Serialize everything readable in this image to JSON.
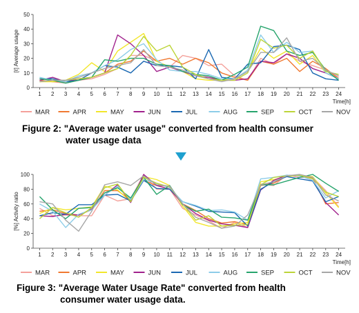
{
  "colors": {
    "MAR": "#f4a09a",
    "APR": "#f07830",
    "MAY": "#f2e62a",
    "JUN": "#a0208c",
    "JUL": "#1a68b2",
    "AUG": "#8ccce8",
    "SEP": "#26a46c",
    "OCT": "#bcd438",
    "NOV": "#a6a6a6",
    "axis": "#444444",
    "arrow": "#1fa0cf"
  },
  "arrow_icon": "down-triangle-icon",
  "figure2_caption": {
    "line1": "Figure 2: \"Average water usage\" converted from health consumer",
    "line2": "water usage data"
  },
  "figure3_caption": {
    "line1": "Figure 3: \"Average Water Usage Rate\" converted from health",
    "line2": "consumer water usage data."
  },
  "chart_data": [
    {
      "type": "line",
      "ylabel": "[ℓ] Average usage",
      "xlabel": "Time[h]",
      "ylim": [
        0,
        50
      ],
      "yticks": [
        0,
        10,
        20,
        30,
        40,
        50
      ],
      "x": [
        1,
        2,
        3,
        4,
        5,
        6,
        7,
        8,
        9,
        10,
        11,
        12,
        13,
        14,
        15,
        16,
        17,
        18,
        19,
        20,
        21,
        22,
        23,
        24
      ],
      "legend_position": "bottom",
      "series": [
        {
          "name": "MAR",
          "values": [
            5,
            4,
            3,
            5,
            6,
            9,
            13,
            22,
            22,
            18,
            14,
            22,
            20,
            15,
            16,
            8,
            5,
            20,
            16,
            23,
            18,
            15,
            12,
            7
          ]
        },
        {
          "name": "APR",
          "values": [
            5,
            4,
            4,
            5,
            7,
            10,
            16,
            18,
            25,
            18,
            20,
            16,
            20,
            17,
            10,
            7,
            5,
            18,
            16,
            20,
            11,
            18,
            13,
            6
          ]
        },
        {
          "name": "MAY",
          "values": [
            4,
            4,
            5,
            9,
            17,
            11,
            25,
            31,
            37,
            18,
            14,
            11,
            6,
            5,
            5,
            6,
            11,
            27,
            20,
            25,
            16,
            22,
            10,
            6
          ]
        },
        {
          "name": "JUN",
          "values": [
            5,
            7,
            4,
            6,
            7,
            10,
            36,
            30,
            22,
            11,
            14,
            11,
            8,
            7,
            5,
            5,
            6,
            18,
            17,
            23,
            20,
            13,
            10,
            6
          ]
        },
        {
          "name": "JUL",
          "values": [
            6,
            6,
            4,
            5,
            10,
            15,
            14,
            10,
            18,
            15,
            15,
            14,
            6,
            26,
            7,
            6,
            16,
            17,
            28,
            29,
            26,
            10,
            6,
            5
          ]
        },
        {
          "name": "AUG",
          "values": [
            7,
            5,
            4,
            8,
            10,
            15,
            19,
            26,
            30,
            19,
            12,
            11,
            11,
            9,
            6,
            6,
            12,
            36,
            24,
            31,
            24,
            25,
            10,
            6
          ]
        },
        {
          "name": "SEP",
          "values": [
            6,
            5,
            3,
            5,
            7,
            19,
            18,
            20,
            20,
            16,
            15,
            11,
            9,
            8,
            5,
            9,
            14,
            42,
            39,
            25,
            22,
            24,
            12,
            5
          ]
        },
        {
          "name": "OCT",
          "values": [
            4,
            5,
            5,
            6,
            7,
            10,
            13,
            22,
            35,
            25,
            29,
            14,
            9,
            6,
            5,
            5,
            10,
            33,
            27,
            29,
            20,
            25,
            11,
            9
          ]
        },
        {
          "name": "NOV",
          "values": [
            4,
            5,
            5,
            7,
            10,
            13,
            15,
            17,
            26,
            15,
            14,
            12,
            8,
            6,
            4,
            6,
            11,
            24,
            24,
            34,
            18,
            20,
            12,
            8
          ]
        }
      ]
    },
    {
      "type": "line",
      "ylabel": "[%] Activity ratio",
      "xlabel": "Time[h]",
      "ylim": [
        0,
        100
      ],
      "yticks": [
        0,
        20,
        40,
        60,
        80,
        100
      ],
      "x": [
        1,
        2,
        3,
        4,
        5,
        6,
        7,
        8,
        9,
        10,
        11,
        12,
        13,
        14,
        15,
        16,
        17,
        18,
        19,
        20,
        21,
        22,
        23,
        24
      ],
      "legend_position": "bottom",
      "series": [
        {
          "name": "MAR",
          "values": [
            54,
            44,
            45,
            44,
            44,
            72,
            64,
            67,
            100,
            80,
            80,
            54,
            45,
            37,
            27,
            35,
            28,
            87,
            85,
            99,
            96,
            96,
            78,
            56
          ]
        },
        {
          "name": "APR",
          "values": [
            50,
            52,
            47,
            45,
            52,
            78,
            78,
            65,
            92,
            85,
            84,
            60,
            51,
            40,
            34,
            36,
            32,
            85,
            88,
            98,
            99,
            95,
            60,
            62
          ]
        },
        {
          "name": "MAY",
          "values": [
            47,
            55,
            52,
            54,
            56,
            84,
            79,
            63,
            97,
            93,
            85,
            57,
            35,
            30,
            30,
            33,
            35,
            90,
            93,
            97,
            99,
            97,
            75,
            55
          ]
        },
        {
          "name": "JUN",
          "values": [
            44,
            43,
            46,
            45,
            53,
            72,
            86,
            62,
            100,
            85,
            80,
            60,
            47,
            38,
            33,
            31,
            28,
            79,
            92,
            99,
            98,
            92,
            62,
            45
          ]
        },
        {
          "name": "JUL",
          "values": [
            44,
            48,
            46,
            59,
            59,
            72,
            73,
            64,
            92,
            81,
            80,
            63,
            57,
            50,
            49,
            48,
            30,
            80,
            90,
            97,
            94,
            91,
            63,
            70
          ]
        },
        {
          "name": "AUG",
          "values": [
            60,
            50,
            28,
            46,
            52,
            72,
            84,
            66,
            93,
            88,
            82,
            63,
            58,
            51,
            52,
            49,
            38,
            94,
            96,
            99,
            98,
            92,
            68,
            78
          ]
        },
        {
          "name": "SEP",
          "values": [
            70,
            52,
            40,
            54,
            55,
            75,
            82,
            68,
            96,
            73,
            85,
            59,
            50,
            53,
            42,
            41,
            38,
            86,
            86,
            91,
            96,
            100,
            88,
            77
          ]
        },
        {
          "name": "OCT",
          "values": [
            40,
            55,
            48,
            42,
            55,
            82,
            87,
            63,
            96,
            88,
            83,
            60,
            38,
            44,
            30,
            31,
            32,
            86,
            96,
            98,
            99,
            94,
            76,
            70
          ]
        },
        {
          "name": "NOV",
          "values": [
            63,
            60,
            38,
            23,
            50,
            86,
            90,
            85,
            98,
            86,
            84,
            60,
            42,
            35,
            27,
            30,
            45,
            86,
            90,
            98,
            100,
            96,
            72,
            64
          ]
        }
      ]
    }
  ]
}
